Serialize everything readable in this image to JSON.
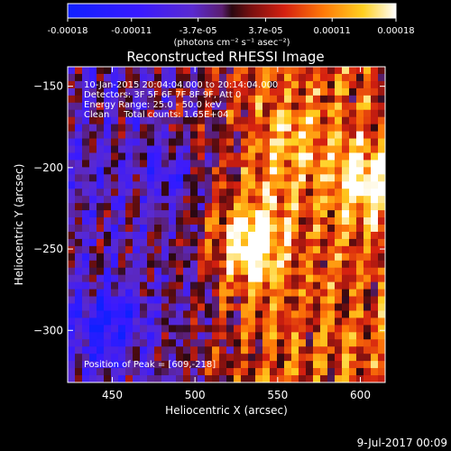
{
  "chart_data": {
    "type": "heatmap",
    "title": "Reconstructed RHESSI Image",
    "xlabel": "Heliocentric X (arcsec)",
    "ylabel": "Heliocentric Y (arcsec)",
    "xlim": [
      423,
      615
    ],
    "ylim": [
      -332,
      -138
    ],
    "x_ticks": [
      450,
      500,
      550,
      600
    ],
    "y_ticks": [
      -150,
      -200,
      -250,
      -300
    ],
    "grid": false,
    "colorbar": {
      "min": -0.00018,
      "max": 0.00018,
      "tick_labels": [
        "-0.00018",
        "-0.00011",
        "-3.7e-05",
        "3.7e-05",
        "0.00011",
        "0.00018"
      ],
      "unit_label": "(photons cm⁻² s⁻¹ asec⁻²)"
    },
    "annotations": [
      "10-Jan-2015 20:04:04.000 to 20:14:04.000",
      "Detectors: 3F 5F 6F 7F 8F 9F, Att 0",
      "Energy Range: 25.0 - 50.0 keV",
      "Clean     Total counts: 1.65E+04",
      "Position of Peak = [609,-218]"
    ],
    "peak": {
      "x": 609,
      "y": -218
    },
    "colormap": "blue-purple-red-yellow-white"
  },
  "footer_date": "9-Jul-2017 00:09"
}
